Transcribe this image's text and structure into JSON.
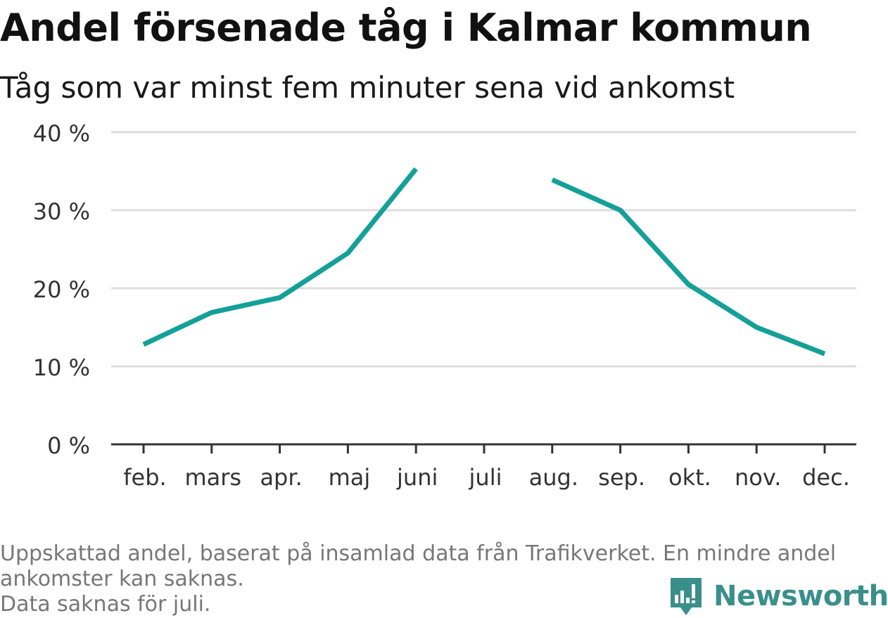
{
  "title": "Andel försenade tåg i Kalmar kommun",
  "subtitle": "Tåg som var minst fem minuter sena vid ankomst",
  "footnote": {
    "line1": "Uppskattad andel, baserat på insamlad data från Trafikverket. En mindre andel",
    "line2": "ankomster kan saknas.",
    "line3": "Data saknas för juli."
  },
  "brand": {
    "name": "Newsworthy",
    "icon": "bar-chart-speech-bubble-icon",
    "color": "#3a8f8b"
  },
  "colors": {
    "line": "#14a098",
    "grid": "#dddddd",
    "axis": "#333333",
    "text": "#333333"
  },
  "chart_data": {
    "type": "line",
    "title": "Andel försenade tåg i Kalmar kommun",
    "subtitle": "Tåg som var minst fem minuter sena vid ankomst",
    "categories": [
      "feb.",
      "mars",
      "apr.",
      "maj",
      "juni",
      "juli",
      "aug.",
      "sep.",
      "okt.",
      "nov.",
      "dec."
    ],
    "series": [
      {
        "values": [
          12.8,
          16.9,
          18.8,
          24.5,
          35.3,
          null,
          33.9,
          30.0,
          20.5,
          15.0,
          11.6
        ]
      }
    ],
    "yticks": [
      0,
      10,
      20,
      30,
      40
    ],
    "ytick_labels": [
      "0 %",
      "10 %",
      "20 %",
      "30 %",
      "40 %"
    ],
    "ylim": [
      0,
      40
    ],
    "grid": true,
    "legend": "none",
    "unit": "%"
  }
}
